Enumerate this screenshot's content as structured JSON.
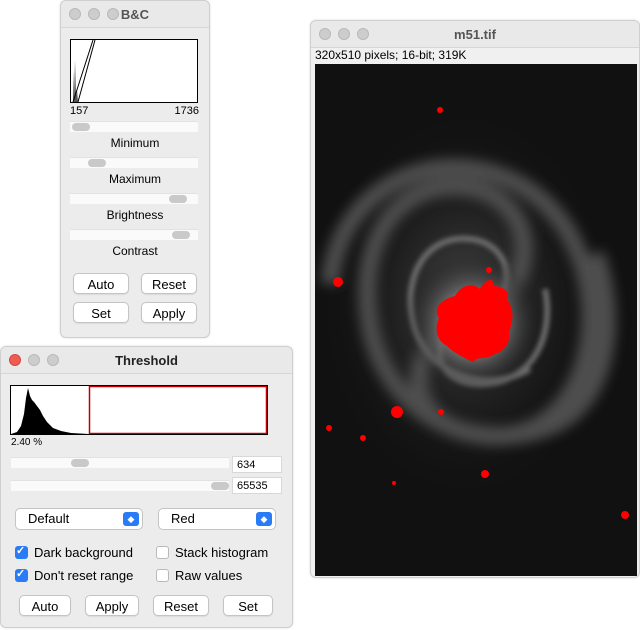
{
  "bc": {
    "title": "B&C",
    "hist_min": "157",
    "hist_max": "1736",
    "labels": {
      "minimum": "Minimum",
      "maximum": "Maximum",
      "brightness": "Brightness",
      "contrast": "Contrast"
    },
    "slider_levels": {
      "minimum": 0.02,
      "maximum": 0.14,
      "brightness": 0.78,
      "contrast": 0.8
    },
    "buttons": {
      "auto": "Auto",
      "reset": "Reset",
      "set": "Set",
      "apply": "Apply"
    }
  },
  "threshold": {
    "title": "Threshold",
    "percent": "2.40 %",
    "lower_value": "634",
    "upper_value": "65535",
    "slider_levels": {
      "lower": 0.3,
      "upper": 0.95
    },
    "method": "Default",
    "color": "Red",
    "options": {
      "dark_background": {
        "label": "Dark background",
        "checked": true
      },
      "stack_histogram": {
        "label": "Stack histogram",
        "checked": false
      },
      "dont_reset_range": {
        "label": "Don't reset range",
        "checked": true
      },
      "raw_values": {
        "label": "Raw values",
        "checked": false
      }
    },
    "buttons": {
      "auto": "Auto",
      "apply": "Apply",
      "reset": "Reset",
      "set": "Set"
    },
    "highlight_color": "#c00000"
  },
  "image": {
    "title": "m51.tif",
    "info": "320x510 pixels; 16-bit; 319K",
    "overlay_color": "#ff0000"
  }
}
